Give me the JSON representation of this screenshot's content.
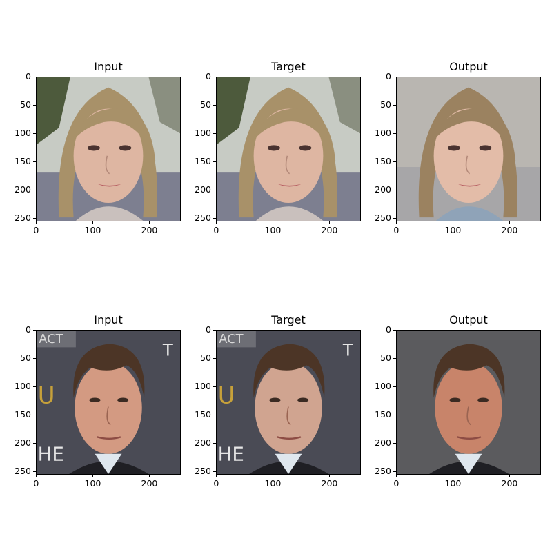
{
  "figure": {
    "rows": [
      {
        "subject": "woman",
        "panels": [
          {
            "title": "Input",
            "image": "woman-input-photo"
          },
          {
            "title": "Target",
            "image": "woman-target-photo"
          },
          {
            "title": "Output",
            "image": "woman-output-photo"
          }
        ]
      },
      {
        "subject": "man",
        "panels": [
          {
            "title": "Input",
            "image": "man-input-photo"
          },
          {
            "title": "Target",
            "image": "man-target-photo"
          },
          {
            "title": "Output",
            "image": "man-output-photo"
          }
        ]
      }
    ],
    "axes": {
      "x_ticks": [
        "0",
        "100",
        "200"
      ],
      "y_ticks": [
        "0",
        "50",
        "100",
        "150",
        "200",
        "250"
      ]
    }
  }
}
